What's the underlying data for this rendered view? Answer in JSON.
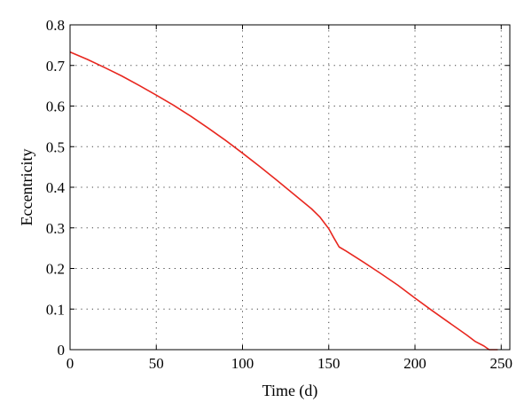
{
  "chart_data": {
    "type": "line",
    "title": "",
    "xlabel": "Time (d)",
    "ylabel": "Eccentricity",
    "xlim": [
      0,
      255
    ],
    "ylim": [
      0,
      0.8
    ],
    "xticks": [
      0,
      50,
      100,
      150,
      200,
      250
    ],
    "yticks": [
      0,
      0.1,
      0.2,
      0.3,
      0.4,
      0.5,
      0.6,
      0.7,
      0.8
    ],
    "xtick_labels": [
      "0",
      "50",
      "100",
      "150",
      "200",
      "250"
    ],
    "ytick_labels": [
      "0",
      "0.1",
      "0.2",
      "0.3",
      "0.4",
      "0.5",
      "0.6",
      "0.7",
      "0.8"
    ],
    "grid": true,
    "series": [
      {
        "color": "#e8271f",
        "x": [
          0,
          10,
          20,
          30,
          40,
          50,
          60,
          70,
          80,
          90,
          100,
          110,
          120,
          130,
          140,
          145,
          150,
          153,
          156,
          160,
          170,
          180,
          190,
          200,
          210,
          220,
          230,
          235,
          240,
          243,
          248
        ],
        "y": [
          0.733,
          0.715,
          0.695,
          0.674,
          0.651,
          0.627,
          0.602,
          0.575,
          0.546,
          0.516,
          0.484,
          0.451,
          0.417,
          0.382,
          0.347,
          0.326,
          0.298,
          0.275,
          0.253,
          0.243,
          0.216,
          0.188,
          0.159,
          0.127,
          0.096,
          0.066,
          0.036,
          0.02,
          0.009,
          0.0,
          0.0
        ]
      }
    ]
  }
}
